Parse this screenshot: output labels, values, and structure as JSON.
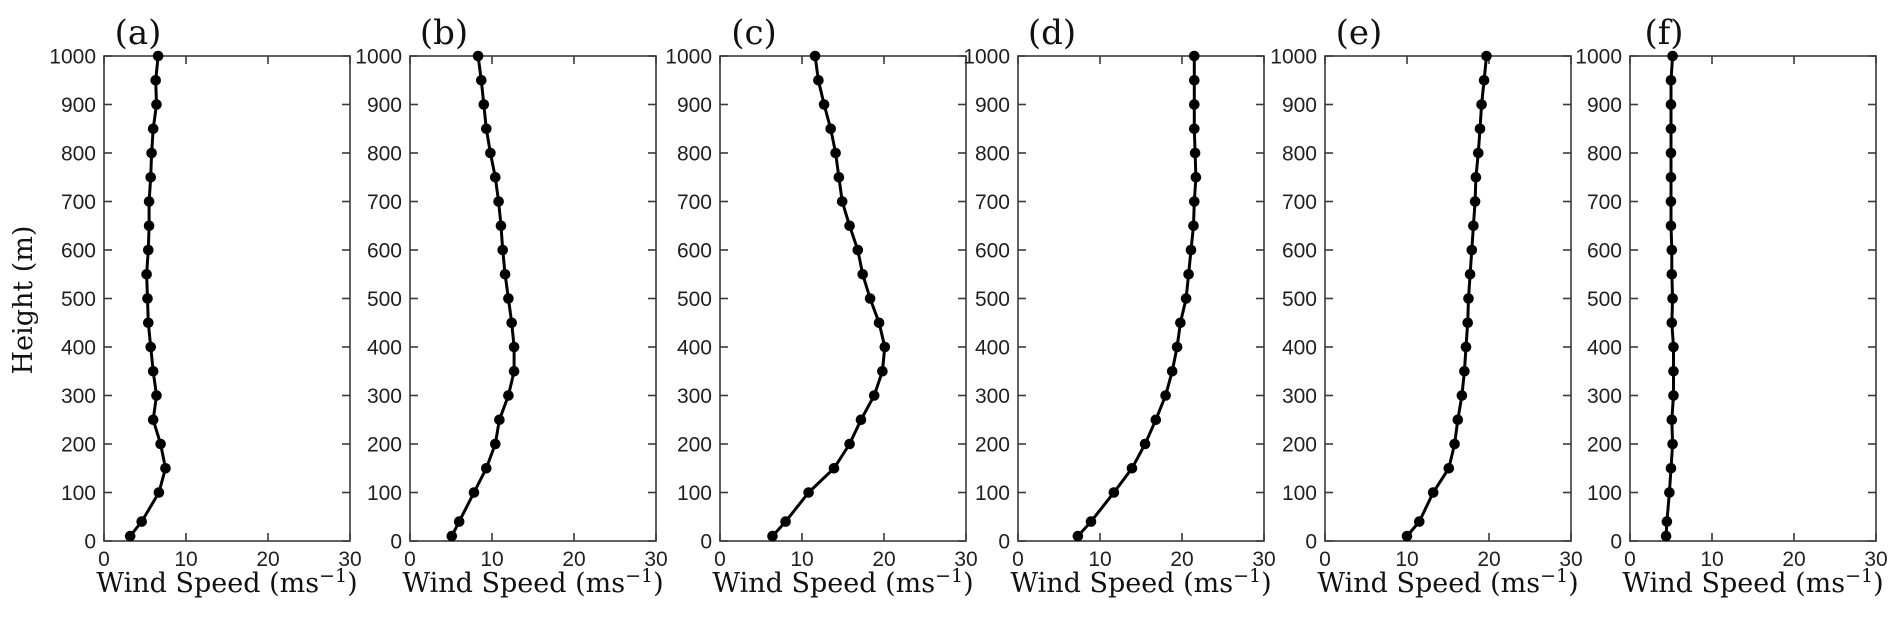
{
  "figure": {
    "background_color": "#ffffff",
    "axis_color": "#3a3a3a",
    "line_color": "#000000",
    "marker_color": "#000000",
    "marker_style": "filled-circle",
    "line_style": "solid"
  },
  "chart_data": {
    "type": "line",
    "description": "Six vertical wind speed profile subplots",
    "xlabel": "Wind Speed (ms⁻¹)",
    "ylabel": "Height (m)",
    "xlim": [
      0,
      30
    ],
    "ylim": [
      0,
      1000
    ],
    "xticks": [
      0,
      10,
      20,
      30
    ],
    "yticks": [
      0,
      100,
      200,
      300,
      400,
      500,
      600,
      700,
      800,
      900,
      1000
    ],
    "grid": false,
    "legend": "none",
    "heights_m": [
      10,
      40,
      100,
      150,
      200,
      250,
      300,
      350,
      400,
      450,
      500,
      550,
      600,
      650,
      700,
      750,
      800,
      850,
      900,
      950,
      1000
    ],
    "panels": [
      {
        "label": "(a)",
        "wind_speed_ms": [
          3.2,
          4.6,
          6.7,
          7.5,
          6.9,
          6.0,
          6.4,
          6.0,
          5.7,
          5.4,
          5.3,
          5.2,
          5.4,
          5.5,
          5.5,
          5.7,
          5.8,
          6.0,
          6.4,
          6.3,
          6.6
        ]
      },
      {
        "label": "(b)",
        "wind_speed_ms": [
          5.1,
          6.0,
          7.8,
          9.3,
          10.4,
          10.9,
          12.0,
          12.7,
          12.7,
          12.4,
          12.0,
          11.6,
          11.3,
          11.1,
          10.8,
          10.4,
          9.8,
          9.3,
          9.0,
          8.7,
          8.3
        ]
      },
      {
        "label": "(c)",
        "wind_speed_ms": [
          6.4,
          8.0,
          10.8,
          13.9,
          15.8,
          17.2,
          18.8,
          19.8,
          20.1,
          19.4,
          18.3,
          17.4,
          16.8,
          15.8,
          14.9,
          14.5,
          14.1,
          13.5,
          12.7,
          12.0,
          11.6
        ]
      },
      {
        "label": "(d)",
        "wind_speed_ms": [
          7.3,
          8.9,
          11.7,
          13.9,
          15.5,
          16.8,
          18.0,
          18.8,
          19.4,
          19.8,
          20.5,
          20.8,
          21.1,
          21.4,
          21.5,
          21.7,
          21.6,
          21.5,
          21.5,
          21.5,
          21.5
        ]
      },
      {
        "label": "(e)",
        "wind_speed_ms": [
          10.0,
          11.5,
          13.2,
          15.1,
          15.8,
          16.2,
          16.7,
          17.0,
          17.2,
          17.4,
          17.5,
          17.7,
          17.9,
          18.1,
          18.3,
          18.4,
          18.7,
          18.9,
          19.1,
          19.4,
          19.7
        ]
      },
      {
        "label": "(f)",
        "wind_speed_ms": [
          4.4,
          4.5,
          4.8,
          5.0,
          5.2,
          5.1,
          5.3,
          5.3,
          5.3,
          5.1,
          5.2,
          5.1,
          5.1,
          5.0,
          5.0,
          5.0,
          5.0,
          5.0,
          5.0,
          5.0,
          5.2
        ]
      }
    ]
  }
}
